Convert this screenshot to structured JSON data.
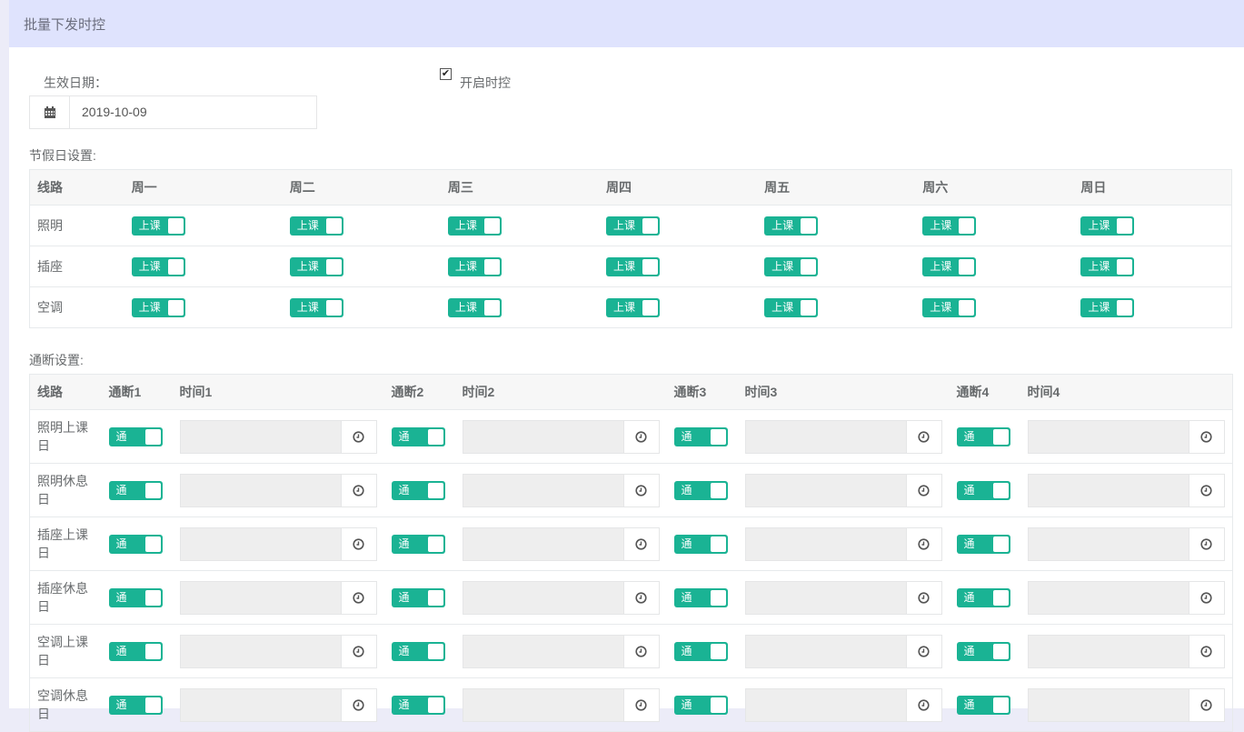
{
  "panel": {
    "title": "批量下发时控"
  },
  "effective_date": {
    "label": "生效日期：",
    "value": "2019-10-09",
    "icon": "calendar-icon"
  },
  "enable": {
    "label": "开启时控",
    "checked": true
  },
  "holiday": {
    "label": "节假日设置:",
    "headers": [
      "线路",
      "周一",
      "周二",
      "周三",
      "周四",
      "周五",
      "周六",
      "周日"
    ],
    "rows": [
      {
        "name": "照明",
        "toggles": [
          "上课",
          "上课",
          "上课",
          "上课",
          "上课",
          "上课",
          "上课"
        ]
      },
      {
        "name": "插座",
        "toggles": [
          "上课",
          "上课",
          "上课",
          "上课",
          "上课",
          "上课",
          "上课"
        ]
      },
      {
        "name": "空调",
        "toggles": [
          "上课",
          "上课",
          "上课",
          "上课",
          "上课",
          "上课",
          "上课"
        ]
      }
    ]
  },
  "switching": {
    "label": "通断设置:",
    "headers": [
      "线路",
      "通断1",
      "时间1",
      "通断2",
      "时间2",
      "通断3",
      "时间3",
      "通断4",
      "时间4"
    ],
    "rows": [
      {
        "name": "照明上课日",
        "toggles": [
          "通",
          "通",
          "通",
          "通"
        ],
        "times": [
          "",
          "",
          "",
          ""
        ]
      },
      {
        "name": "照明休息日",
        "toggles": [
          "通",
          "通",
          "通",
          "通"
        ],
        "times": [
          "",
          "",
          "",
          ""
        ]
      },
      {
        "name": "插座上课日",
        "toggles": [
          "通",
          "通",
          "通",
          "通"
        ],
        "times": [
          "",
          "",
          "",
          ""
        ]
      },
      {
        "name": "插座休息日",
        "toggles": [
          "通",
          "通",
          "通",
          "通"
        ],
        "times": [
          "",
          "",
          "",
          ""
        ]
      },
      {
        "name": "空调上课日",
        "toggles": [
          "通",
          "通",
          "通",
          "通"
        ],
        "times": [
          "",
          "",
          "",
          ""
        ]
      },
      {
        "name": "空调休息日",
        "toggles": [
          "通",
          "通",
          "通",
          "通"
        ],
        "times": [
          "",
          "",
          "",
          ""
        ]
      }
    ]
  },
  "colors": {
    "accent": "#1ab394",
    "header_bg": "#dfe3fd"
  }
}
